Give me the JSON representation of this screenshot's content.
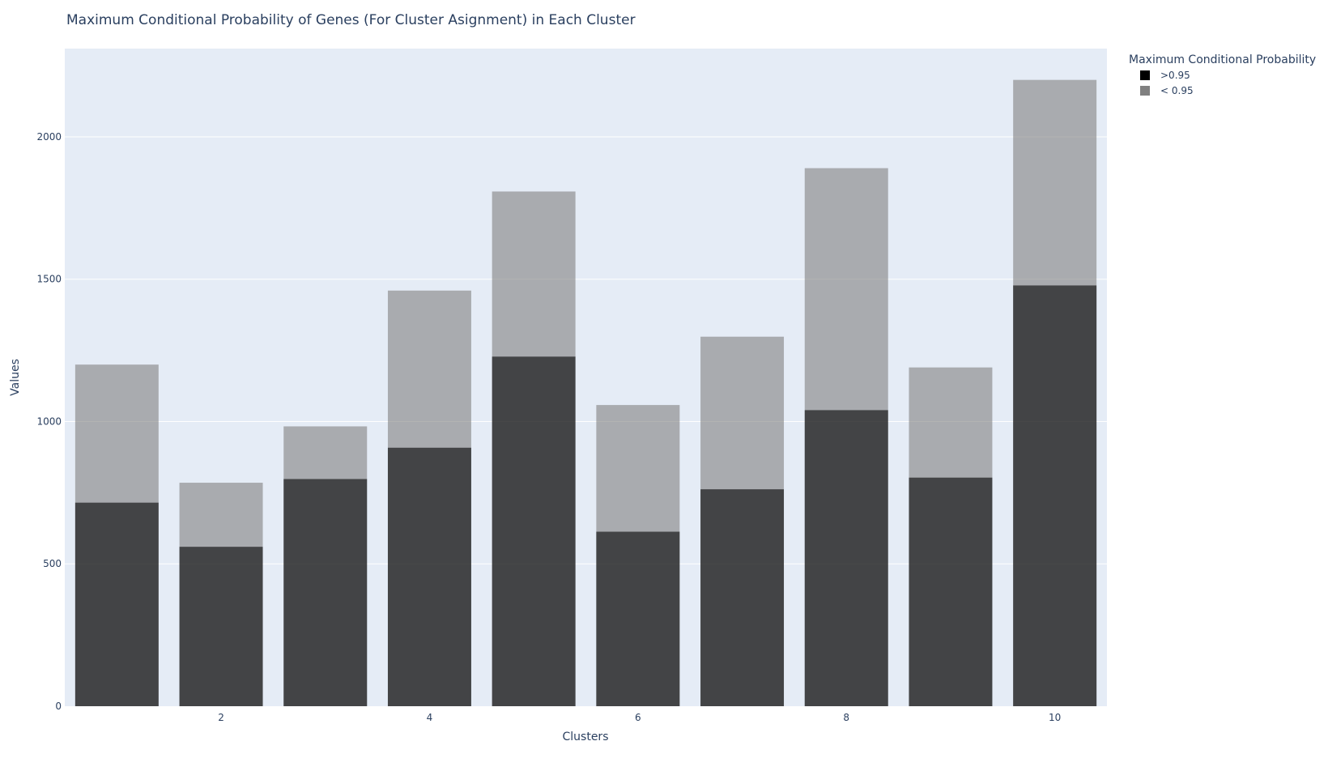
{
  "chart_data": {
    "type": "bar",
    "barmode": "overlay",
    "title": "Maximum Conditional Probability of Genes (For Cluster Asignment) in Each Cluster",
    "xlabel": "Clusters",
    "ylabel": "Values",
    "x": [
      1,
      2,
      3,
      4,
      5,
      6,
      7,
      8,
      9,
      10
    ],
    "x_ticks": [
      2,
      4,
      6,
      8,
      10
    ],
    "y_ticks": [
      0,
      500,
      1000,
      1500,
      2000
    ],
    "ylim": [
      0,
      2310
    ],
    "xlim": [
      0.5,
      10.5
    ],
    "grid": true,
    "plot_bg": "#e5ecf6",
    "legend": {
      "title": "Maximum Conditional Probability",
      "placement": "top-right-outside"
    },
    "series": [
      {
        "name": "< 0.95",
        "color": "#808080",
        "values": [
          1200,
          785,
          983,
          1460,
          1808,
          1058,
          1298,
          1890,
          1190,
          2200
        ]
      },
      {
        "name": ">0.95",
        "color": "#000000",
        "values": [
          715,
          560,
          798,
          908,
          1228,
          613,
          762,
          1040,
          803,
          1478
        ]
      }
    ],
    "legend_order": [
      ">0.95",
      "< 0.95"
    ]
  }
}
